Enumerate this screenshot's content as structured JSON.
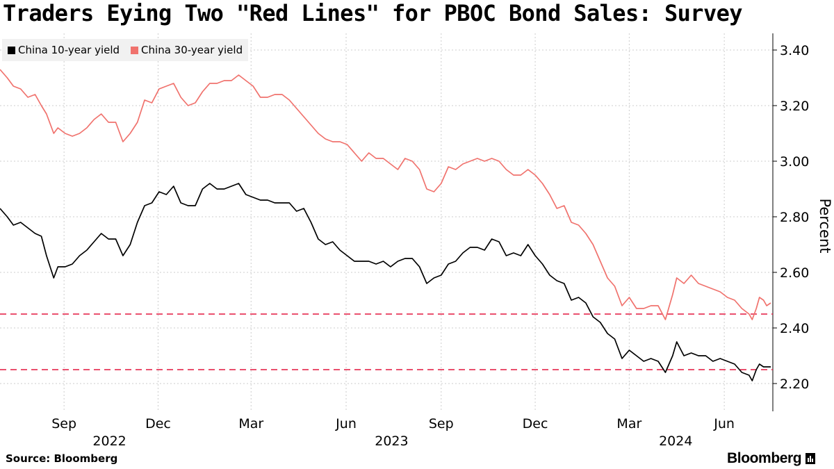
{
  "header": {
    "title": "Traders Eying Two \"Red Lines\" for PBOC Bond Sales: Survey"
  },
  "legend": [
    {
      "label": "China 10-year yield",
      "color": "#000000"
    },
    {
      "label": "China 30-year yield",
      "color": "#f0726d"
    }
  ],
  "footer": {
    "source": "Source:  Bloomberg",
    "brand": "Bloomberg"
  },
  "colors": {
    "reference_line": "#e8385a",
    "grid": "#cccccc"
  },
  "chart_data": {
    "type": "line",
    "title": "Traders Eying Two \"Red Lines\" for PBOC Bond Sales: Survey",
    "ylabel": "Percent",
    "ylim": [
      2.1,
      3.46
    ],
    "yticks": [
      2.2,
      2.4,
      2.6,
      2.8,
      3.0,
      3.2,
      3.4
    ],
    "ytick_labels": [
      "2.20",
      "2.40",
      "2.60",
      "2.80",
      "3.00",
      "3.20",
      "3.40"
    ],
    "xlim": [
      "2022-07-01",
      "2024-07-18"
    ],
    "month_ticks": [
      {
        "date": "2022-09-01",
        "label": "Sep"
      },
      {
        "date": "2022-12-01",
        "label": "Dec"
      },
      {
        "date": "2023-03-01",
        "label": "Mar"
      },
      {
        "date": "2023-06-01",
        "label": "Jun"
      },
      {
        "date": "2023-09-01",
        "label": "Sep"
      },
      {
        "date": "2023-12-01",
        "label": "Dec"
      },
      {
        "date": "2024-03-01",
        "label": "Mar"
      },
      {
        "date": "2024-06-01",
        "label": "Jun"
      }
    ],
    "year_labels": [
      {
        "date": "2022-10-15",
        "label": "2022"
      },
      {
        "date": "2023-07-15",
        "label": "2023"
      },
      {
        "date": "2024-04-15",
        "label": "2024"
      }
    ],
    "reference_lines": [
      2.45,
      2.25
    ],
    "series": [
      {
        "name": "China 10-year yield",
        "color": "#000000",
        "points": [
          [
            "2022-07-01",
            2.83
          ],
          [
            "2022-07-08",
            2.8
          ],
          [
            "2022-07-14",
            2.77
          ],
          [
            "2022-07-21",
            2.78
          ],
          [
            "2022-07-28",
            2.76
          ],
          [
            "2022-08-04",
            2.74
          ],
          [
            "2022-08-10",
            2.73
          ],
          [
            "2022-08-15",
            2.66
          ],
          [
            "2022-08-22",
            2.58
          ],
          [
            "2022-08-26",
            2.62
          ],
          [
            "2022-09-02",
            2.62
          ],
          [
            "2022-09-09",
            2.63
          ],
          [
            "2022-09-16",
            2.66
          ],
          [
            "2022-09-23",
            2.68
          ],
          [
            "2022-09-30",
            2.71
          ],
          [
            "2022-10-07",
            2.74
          ],
          [
            "2022-10-14",
            2.72
          ],
          [
            "2022-10-21",
            2.72
          ],
          [
            "2022-10-28",
            2.66
          ],
          [
            "2022-11-04",
            2.7
          ],
          [
            "2022-11-11",
            2.78
          ],
          [
            "2022-11-18",
            2.84
          ],
          [
            "2022-11-25",
            2.85
          ],
          [
            "2022-12-02",
            2.89
          ],
          [
            "2022-12-09",
            2.88
          ],
          [
            "2022-12-16",
            2.91
          ],
          [
            "2022-12-23",
            2.85
          ],
          [
            "2022-12-30",
            2.84
          ],
          [
            "2023-01-06",
            2.84
          ],
          [
            "2023-01-13",
            2.9
          ],
          [
            "2023-01-20",
            2.92
          ],
          [
            "2023-01-27",
            2.9
          ],
          [
            "2023-02-03",
            2.9
          ],
          [
            "2023-02-10",
            2.91
          ],
          [
            "2023-02-17",
            2.92
          ],
          [
            "2023-02-24",
            2.88
          ],
          [
            "2023-03-03",
            2.87
          ],
          [
            "2023-03-10",
            2.86
          ],
          [
            "2023-03-17",
            2.86
          ],
          [
            "2023-03-24",
            2.85
          ],
          [
            "2023-03-31",
            2.85
          ],
          [
            "2023-04-07",
            2.85
          ],
          [
            "2023-04-14",
            2.82
          ],
          [
            "2023-04-21",
            2.83
          ],
          [
            "2023-04-28",
            2.78
          ],
          [
            "2023-05-05",
            2.72
          ],
          [
            "2023-05-12",
            2.7
          ],
          [
            "2023-05-19",
            2.71
          ],
          [
            "2023-05-26",
            2.68
          ],
          [
            "2023-06-02",
            2.66
          ],
          [
            "2023-06-09",
            2.64
          ],
          [
            "2023-06-16",
            2.64
          ],
          [
            "2023-06-23",
            2.64
          ],
          [
            "2023-06-30",
            2.63
          ],
          [
            "2023-07-07",
            2.64
          ],
          [
            "2023-07-14",
            2.62
          ],
          [
            "2023-07-21",
            2.64
          ],
          [
            "2023-07-28",
            2.65
          ],
          [
            "2023-08-04",
            2.65
          ],
          [
            "2023-08-11",
            2.62
          ],
          [
            "2023-08-18",
            2.56
          ],
          [
            "2023-08-25",
            2.58
          ],
          [
            "2023-09-01",
            2.59
          ],
          [
            "2023-09-08",
            2.63
          ],
          [
            "2023-09-15",
            2.64
          ],
          [
            "2023-09-22",
            2.67
          ],
          [
            "2023-09-29",
            2.69
          ],
          [
            "2023-10-06",
            2.69
          ],
          [
            "2023-10-13",
            2.68
          ],
          [
            "2023-10-20",
            2.72
          ],
          [
            "2023-10-27",
            2.71
          ],
          [
            "2023-11-03",
            2.66
          ],
          [
            "2023-11-10",
            2.67
          ],
          [
            "2023-11-17",
            2.66
          ],
          [
            "2023-11-24",
            2.7
          ],
          [
            "2023-12-01",
            2.66
          ],
          [
            "2023-12-08",
            2.63
          ],
          [
            "2023-12-15",
            2.59
          ],
          [
            "2023-12-22",
            2.57
          ],
          [
            "2023-12-29",
            2.56
          ],
          [
            "2024-01-05",
            2.5
          ],
          [
            "2024-01-12",
            2.51
          ],
          [
            "2024-01-19",
            2.49
          ],
          [
            "2024-01-26",
            2.44
          ],
          [
            "2024-02-02",
            2.42
          ],
          [
            "2024-02-09",
            2.38
          ],
          [
            "2024-02-16",
            2.36
          ],
          [
            "2024-02-23",
            2.29
          ],
          [
            "2024-03-01",
            2.32
          ],
          [
            "2024-03-08",
            2.3
          ],
          [
            "2024-03-15",
            2.28
          ],
          [
            "2024-03-22",
            2.29
          ],
          [
            "2024-03-29",
            2.28
          ],
          [
            "2024-04-05",
            2.24
          ],
          [
            "2024-04-12",
            2.3
          ],
          [
            "2024-04-16",
            2.35
          ],
          [
            "2024-04-23",
            2.3
          ],
          [
            "2024-04-30",
            2.31
          ],
          [
            "2024-05-07",
            2.3
          ],
          [
            "2024-05-14",
            2.3
          ],
          [
            "2024-05-21",
            2.28
          ],
          [
            "2024-05-28",
            2.29
          ],
          [
            "2024-06-04",
            2.28
          ],
          [
            "2024-06-11",
            2.27
          ],
          [
            "2024-06-18",
            2.24
          ],
          [
            "2024-06-25",
            2.23
          ],
          [
            "2024-06-28",
            2.21
          ],
          [
            "2024-07-02",
            2.25
          ],
          [
            "2024-07-05",
            2.27
          ],
          [
            "2024-07-09",
            2.26
          ],
          [
            "2024-07-12",
            2.26
          ],
          [
            "2024-07-16",
            2.26
          ]
        ]
      },
      {
        "name": "China 30-year yield",
        "color": "#f0726d",
        "points": [
          [
            "2022-07-01",
            3.33
          ],
          [
            "2022-07-08",
            3.3
          ],
          [
            "2022-07-14",
            3.27
          ],
          [
            "2022-07-21",
            3.26
          ],
          [
            "2022-07-28",
            3.23
          ],
          [
            "2022-08-04",
            3.24
          ],
          [
            "2022-08-10",
            3.2
          ],
          [
            "2022-08-15",
            3.17
          ],
          [
            "2022-08-22",
            3.1
          ],
          [
            "2022-08-26",
            3.12
          ],
          [
            "2022-09-02",
            3.1
          ],
          [
            "2022-09-09",
            3.09
          ],
          [
            "2022-09-16",
            3.1
          ],
          [
            "2022-09-23",
            3.12
          ],
          [
            "2022-09-30",
            3.15
          ],
          [
            "2022-10-07",
            3.17
          ],
          [
            "2022-10-14",
            3.14
          ],
          [
            "2022-10-21",
            3.14
          ],
          [
            "2022-10-28",
            3.07
          ],
          [
            "2022-11-04",
            3.1
          ],
          [
            "2022-11-11",
            3.14
          ],
          [
            "2022-11-18",
            3.22
          ],
          [
            "2022-11-25",
            3.21
          ],
          [
            "2022-12-02",
            3.26
          ],
          [
            "2022-12-09",
            3.27
          ],
          [
            "2022-12-16",
            3.28
          ],
          [
            "2022-12-23",
            3.23
          ],
          [
            "2022-12-30",
            3.2
          ],
          [
            "2023-01-06",
            3.21
          ],
          [
            "2023-01-13",
            3.25
          ],
          [
            "2023-01-20",
            3.28
          ],
          [
            "2023-01-27",
            3.28
          ],
          [
            "2023-02-03",
            3.29
          ],
          [
            "2023-02-10",
            3.29
          ],
          [
            "2023-02-17",
            3.31
          ],
          [
            "2023-02-24",
            3.29
          ],
          [
            "2023-03-03",
            3.27
          ],
          [
            "2023-03-10",
            3.23
          ],
          [
            "2023-03-17",
            3.23
          ],
          [
            "2023-03-24",
            3.24
          ],
          [
            "2023-03-31",
            3.24
          ],
          [
            "2023-04-07",
            3.22
          ],
          [
            "2023-04-14",
            3.19
          ],
          [
            "2023-04-21",
            3.16
          ],
          [
            "2023-04-28",
            3.13
          ],
          [
            "2023-05-05",
            3.1
          ],
          [
            "2023-05-12",
            3.08
          ],
          [
            "2023-05-19",
            3.07
          ],
          [
            "2023-05-26",
            3.07
          ],
          [
            "2023-06-02",
            3.06
          ],
          [
            "2023-06-09",
            3.03
          ],
          [
            "2023-06-16",
            3.0
          ],
          [
            "2023-06-23",
            3.03
          ],
          [
            "2023-06-30",
            3.01
          ],
          [
            "2023-07-07",
            3.01
          ],
          [
            "2023-07-14",
            2.99
          ],
          [
            "2023-07-21",
            2.97
          ],
          [
            "2023-07-28",
            3.01
          ],
          [
            "2023-08-04",
            3.0
          ],
          [
            "2023-08-11",
            2.97
          ],
          [
            "2023-08-18",
            2.9
          ],
          [
            "2023-08-25",
            2.89
          ],
          [
            "2023-09-01",
            2.92
          ],
          [
            "2023-09-08",
            2.98
          ],
          [
            "2023-09-15",
            2.97
          ],
          [
            "2023-09-22",
            2.99
          ],
          [
            "2023-09-29",
            3.0
          ],
          [
            "2023-10-06",
            3.01
          ],
          [
            "2023-10-13",
            3.0
          ],
          [
            "2023-10-20",
            3.01
          ],
          [
            "2023-10-27",
            3.0
          ],
          [
            "2023-11-03",
            2.97
          ],
          [
            "2023-11-10",
            2.95
          ],
          [
            "2023-11-17",
            2.95
          ],
          [
            "2023-11-24",
            2.97
          ],
          [
            "2023-12-01",
            2.95
          ],
          [
            "2023-12-08",
            2.92
          ],
          [
            "2023-12-15",
            2.88
          ],
          [
            "2023-12-22",
            2.83
          ],
          [
            "2023-12-29",
            2.84
          ],
          [
            "2024-01-05",
            2.78
          ],
          [
            "2024-01-12",
            2.77
          ],
          [
            "2024-01-19",
            2.74
          ],
          [
            "2024-01-26",
            2.7
          ],
          [
            "2024-02-02",
            2.64
          ],
          [
            "2024-02-09",
            2.58
          ],
          [
            "2024-02-16",
            2.55
          ],
          [
            "2024-02-23",
            2.48
          ],
          [
            "2024-03-01",
            2.51
          ],
          [
            "2024-03-08",
            2.47
          ],
          [
            "2024-03-15",
            2.47
          ],
          [
            "2024-03-22",
            2.48
          ],
          [
            "2024-03-29",
            2.48
          ],
          [
            "2024-04-05",
            2.43
          ],
          [
            "2024-04-12",
            2.52
          ],
          [
            "2024-04-16",
            2.58
          ],
          [
            "2024-04-23",
            2.56
          ],
          [
            "2024-04-30",
            2.59
          ],
          [
            "2024-05-07",
            2.56
          ],
          [
            "2024-05-14",
            2.55
          ],
          [
            "2024-05-21",
            2.54
          ],
          [
            "2024-05-28",
            2.53
          ],
          [
            "2024-06-04",
            2.51
          ],
          [
            "2024-06-11",
            2.5
          ],
          [
            "2024-06-18",
            2.47
          ],
          [
            "2024-06-25",
            2.45
          ],
          [
            "2024-06-28",
            2.43
          ],
          [
            "2024-07-02",
            2.47
          ],
          [
            "2024-07-05",
            2.51
          ],
          [
            "2024-07-09",
            2.5
          ],
          [
            "2024-07-12",
            2.48
          ],
          [
            "2024-07-16",
            2.49
          ]
        ]
      }
    ]
  }
}
